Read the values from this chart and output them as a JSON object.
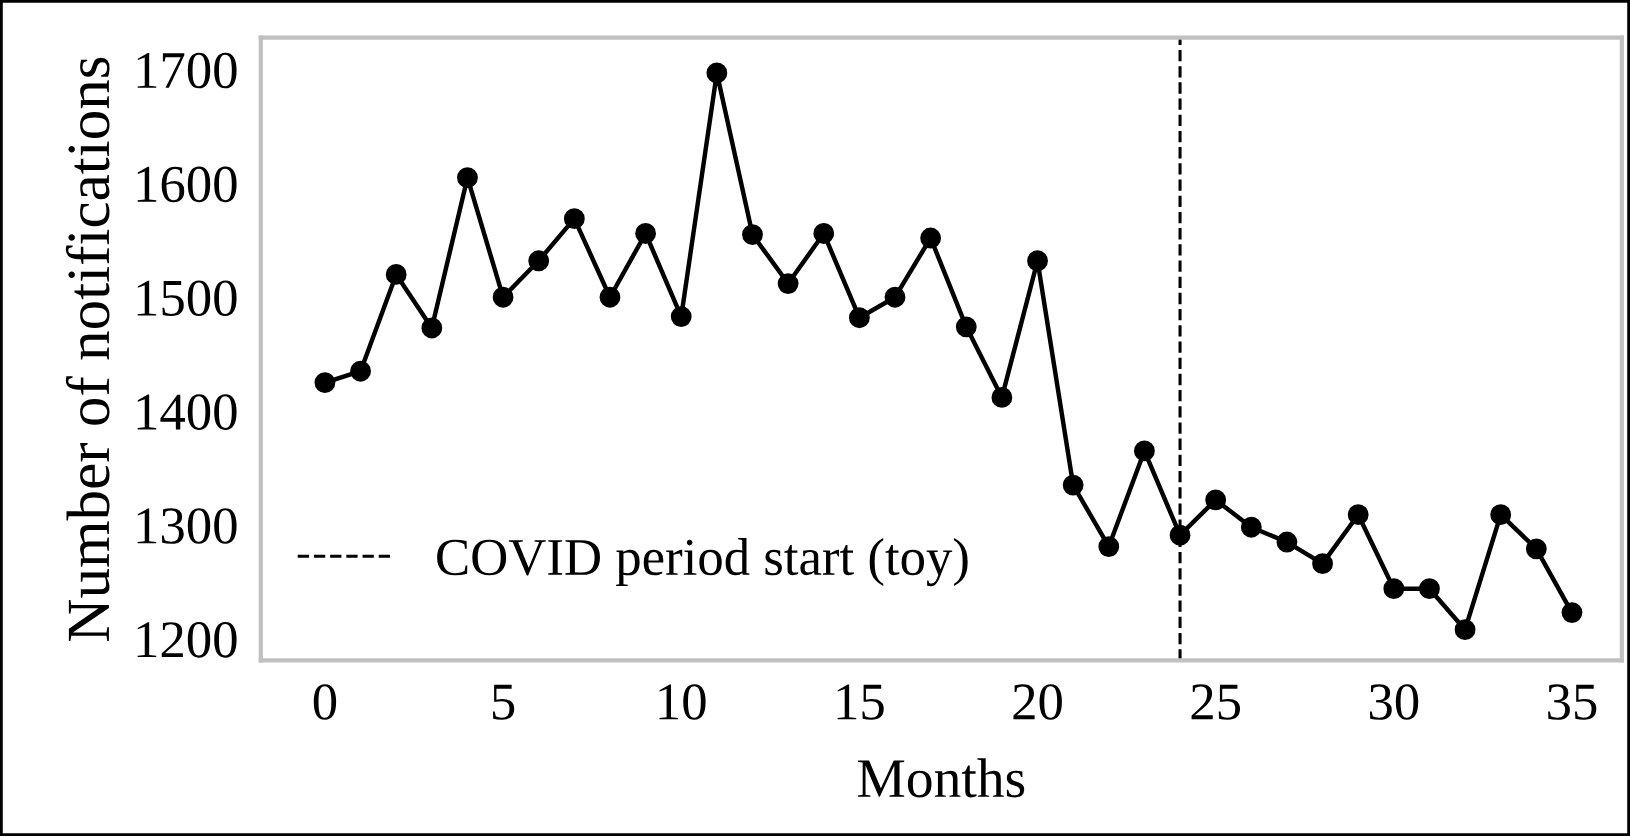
{
  "chart_data": {
    "type": "line",
    "xlabel": "Months",
    "ylabel": "Number of notifications",
    "x": [
      0,
      1,
      2,
      3,
      4,
      5,
      6,
      7,
      8,
      9,
      10,
      11,
      12,
      13,
      14,
      15,
      16,
      17,
      18,
      19,
      20,
      21,
      22,
      23,
      24,
      25,
      26,
      27,
      28,
      29,
      30,
      31,
      32,
      33,
      34,
      35
    ],
    "series": [
      {
        "color": "#000000",
        "values": [
          1425,
          1435,
          1520,
          1473,
          1605,
          1500,
          1532,
          1569,
          1500,
          1556,
          1483,
          1697,
          1555,
          1512,
          1556,
          1482,
          1500,
          1552,
          1474,
          1412,
          1532,
          1335,
          1281,
          1365,
          1291,
          1322,
          1298,
          1285,
          1266,
          1309,
          1244,
          1244,
          1208,
          1309,
          1279,
          1223
        ]
      }
    ],
    "marker": "circle",
    "line_style": "solid",
    "xlim": [
      -1.8,
      36.4
    ],
    "xticks": [
      0,
      5,
      10,
      15,
      20,
      25,
      30,
      35
    ],
    "ylim": [
      1181,
      1728
    ],
    "yticks": [
      1200,
      1300,
      1400,
      1500,
      1600,
      1700
    ],
    "ref_lines": [
      {
        "axis": "x",
        "value": 24,
        "label": "COVID period start (toy)",
        "color": "#000000",
        "line_style": "dashed"
      }
    ],
    "legend": "bottom left",
    "grid": false
  }
}
